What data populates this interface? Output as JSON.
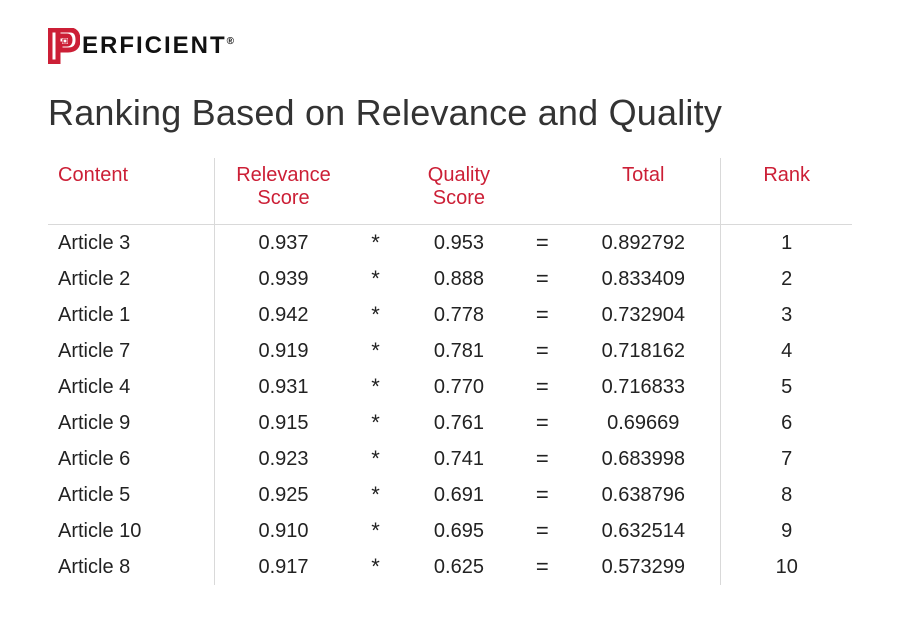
{
  "brand": {
    "name_text": "ERFICIENT",
    "accent": "#cc1f36",
    "text_color": "#111111"
  },
  "title": "Ranking Based on Relevance and Quality",
  "operators": {
    "multiply": "*",
    "equals": "="
  },
  "table": {
    "headers": {
      "content": "Content",
      "relevance": "Relevance Score",
      "quality": "Quality Score",
      "total": "Total",
      "rank": "Rank"
    },
    "rows": [
      {
        "content": "Article 3",
        "relevance": "0.937",
        "quality": "0.953",
        "total": "0.892792",
        "rank": "1"
      },
      {
        "content": "Article 2",
        "relevance": "0.939",
        "quality": "0.888",
        "total": "0.833409",
        "rank": "2"
      },
      {
        "content": "Article 1",
        "relevance": "0.942",
        "quality": "0.778",
        "total": "0.732904",
        "rank": "3"
      },
      {
        "content": "Article 7",
        "relevance": "0.919",
        "quality": "0.781",
        "total": "0.718162",
        "rank": "4"
      },
      {
        "content": "Article 4",
        "relevance": "0.931",
        "quality": "0.770",
        "total": "0.716833",
        "rank": "5"
      },
      {
        "content": "Article 9",
        "relevance": "0.915",
        "quality": "0.761",
        "total": "0.69669",
        "rank": "6"
      },
      {
        "content": "Article 6",
        "relevance": "0.923",
        "quality": "0.741",
        "total": "0.683998",
        "rank": "7"
      },
      {
        "content": "Article 5",
        "relevance": "0.925",
        "quality": "0.691",
        "total": "0.638796",
        "rank": "8"
      },
      {
        "content": "Article 10",
        "relevance": "0.910",
        "quality": "0.695",
        "total": "0.632514",
        "rank": "9"
      },
      {
        "content": "Article 8",
        "relevance": "0.917",
        "quality": "0.625",
        "total": "0.573299",
        "rank": "10"
      }
    ]
  },
  "style": {
    "header_color": "#cc1f36",
    "divider_color": "#d9d9d9",
    "body_text_color": "#222222",
    "title_color": "#333333",
    "title_fontsize": 36,
    "header_fontsize": 20,
    "cell_fontsize": 20,
    "background": "#ffffff"
  }
}
